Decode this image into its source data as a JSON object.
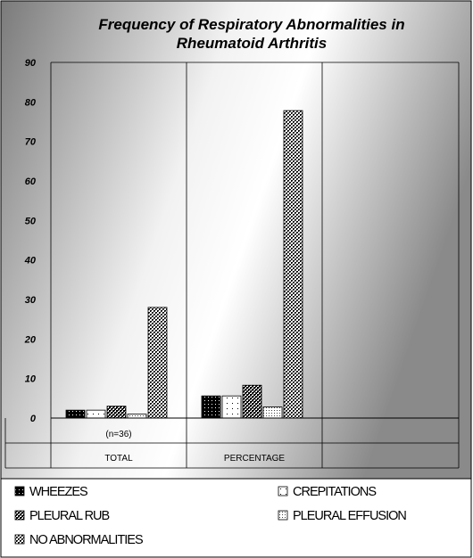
{
  "chart_data": {
    "type": "bar",
    "title_lines": [
      "Frequency of Respiratory Abnormalities in",
      "Rheumatoid Arthritis"
    ],
    "categories": [
      "TOTAL",
      "PERCENTAGE"
    ],
    "category_annotations": [
      "(n=36)",
      ""
    ],
    "ylim": [
      0,
      90
    ],
    "yticks": [
      0,
      10,
      20,
      30,
      40,
      50,
      60,
      70,
      80,
      90
    ],
    "grid": {
      "y": false,
      "x": true
    },
    "legend_position": "bottom",
    "series": [
      {
        "name": "WHEEZES",
        "values": [
          2,
          5.6
        ],
        "pattern": "dots-black"
      },
      {
        "name": "CREPITATIONS",
        "values": [
          2,
          5.6
        ],
        "pattern": "dots-white"
      },
      {
        "name": "PLEURAL RUB",
        "values": [
          3,
          8.3
        ],
        "pattern": "check-black"
      },
      {
        "name": "PLEURAL EFFUSION",
        "values": [
          1,
          2.8
        ],
        "pattern": "dots-light"
      },
      {
        "name": "NO ABNORMALITIES",
        "values": [
          28,
          77.8
        ],
        "pattern": "check-white"
      }
    ]
  }
}
